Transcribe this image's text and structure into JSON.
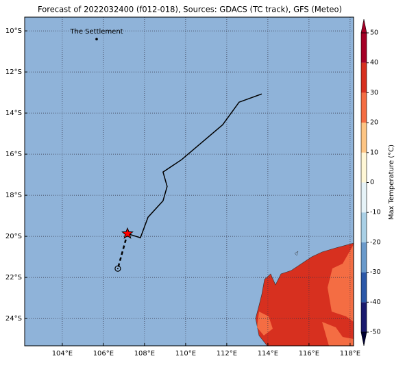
{
  "chart_data": {
    "type": "map",
    "title": "Forecast of 2022032400 (f012-018), Sources: GDACS (TC track), GFS (Meteo)",
    "xlim": [
      102.17,
      118.17
    ],
    "ylim": [
      -25.33,
      -9.33
    ],
    "xticks": [
      {
        "value": 104,
        "label": "104°E"
      },
      {
        "value": 106,
        "label": "106°E"
      },
      {
        "value": 108,
        "label": "108°E"
      },
      {
        "value": 110,
        "label": "110°E"
      },
      {
        "value": 112,
        "label": "112°E"
      },
      {
        "value": 114,
        "label": "114°E"
      },
      {
        "value": 116,
        "label": "116°E"
      },
      {
        "value": 118,
        "label": "118°E"
      }
    ],
    "yticks": [
      {
        "value": -10,
        "label": "10°S"
      },
      {
        "value": -12,
        "label": "12°S"
      },
      {
        "value": -14,
        "label": "14°S"
      },
      {
        "value": -16,
        "label": "16°S"
      },
      {
        "value": -18,
        "label": "18°S"
      },
      {
        "value": -20,
        "label": "20°S"
      },
      {
        "value": -22,
        "label": "22°S"
      },
      {
        "value": -24,
        "label": "24°S"
      }
    ],
    "grid": true,
    "track": {
      "x": [
        113.7,
        112.6,
        111.8,
        109.8,
        108.9,
        109.1,
        108.9,
        108.17,
        107.8,
        107.17
      ],
      "y": [
        -13.07,
        -13.47,
        -14.57,
        -16.27,
        -16.87,
        -17.57,
        -18.27,
        -19.07,
        -20.07,
        -19.87
      ],
      "color": "#000000"
    },
    "forecast_track": {
      "x": [
        107.17,
        106.7
      ],
      "y": [
        -19.87,
        -21.57
      ],
      "color": "#000000"
    },
    "current_position": {
      "x": 107.17,
      "y": -19.87,
      "color": "#ff0000"
    },
    "place": {
      "label": "The Settlement",
      "x": 105.67,
      "y": -10.4
    },
    "colorbar": {
      "label": "Max Temperature (°C)",
      "lim": [
        -50,
        50
      ],
      "ticks": [
        50,
        40,
        30,
        20,
        10,
        0,
        -10,
        -20,
        -30,
        -40,
        -50
      ],
      "colors": [
        "#1a1a6e",
        "#2c58a8",
        "#6a9acb",
        "#a9d0e6",
        "#e6f3f8",
        "#fff7d6",
        "#fdc584",
        "#f46d43",
        "#d7301f",
        "#a50026"
      ]
    }
  }
}
